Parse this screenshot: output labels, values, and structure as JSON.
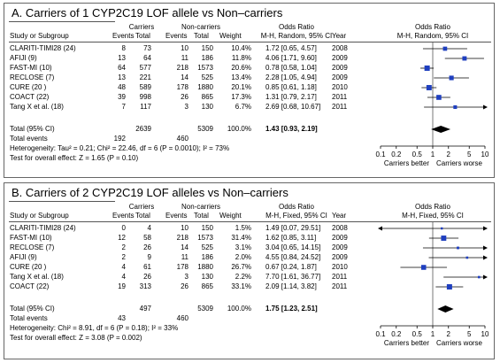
{
  "panels": [
    {
      "title": "A. Carriers of 1 CYP2C19 LOF allele vs Non–carriers",
      "headers": {
        "group1": "Carriers",
        "group2": "Non-carriers",
        "study": "Study or Subgroup",
        "events": "Events",
        "total": "Total",
        "events2": "Events",
        "total2": "Total",
        "weight": "Weight",
        "or_col": "Odds Ratio",
        "or_sub": "M-H, Random, 95% CI",
        "year": "Year",
        "plot_title": "Odds Ratio",
        "plot_sub": "M-H, Random, 95% CI"
      },
      "rows": [
        {
          "study": "CLARITI-TIMI28 (24)",
          "e1": "8",
          "t1": "73",
          "e2": "10",
          "t2": "150",
          "weight": "10.4%",
          "ci": "1.72 [0.65, 4.57]",
          "year": "2008"
        },
        {
          "study": "AFIJI (9)",
          "e1": "13",
          "t1": "64",
          "e2": "11",
          "t2": "186",
          "weight": "11.8%",
          "ci": "4.06 [1.71, 9.60]",
          "year": "2009"
        },
        {
          "study": "FAST-MI (10)",
          "e1": "64",
          "t1": "577",
          "e2": "218",
          "t2": "1573",
          "weight": "20.6%",
          "ci": "0.78 [0.58, 1.04]",
          "year": "2009"
        },
        {
          "study": "RECLOSE (7)",
          "e1": "13",
          "t1": "221",
          "e2": "14",
          "t2": "525",
          "weight": "13.4%",
          "ci": "2.28 [1.05, 4.94]",
          "year": "2009"
        },
        {
          "study": "CURE (20 )",
          "e1": "48",
          "t1": "589",
          "e2": "178",
          "t2": "1880",
          "weight": "20.1%",
          "ci": "0.85 [0.61, 1.18]",
          "year": "2010"
        },
        {
          "study": "COACT (22)",
          "e1": "39",
          "t1": "998",
          "e2": "26",
          "t2": "865",
          "weight": "17.3%",
          "ci": "1.31 [0.79, 2.17]",
          "year": "2011"
        },
        {
          "study": "Tang X et al. (18)",
          "e1": "7",
          "t1": "117",
          "e2": "3",
          "t2": "130",
          "weight": "6.7%",
          "ci": "2.69 [0.68, 10.67]",
          "year": "2011"
        }
      ],
      "total": {
        "label": "Total (95% CI)",
        "t1": "2639",
        "t2": "5309",
        "weight": "100.0%",
        "ci": "1.43 [0.93, 2.19]"
      },
      "total_events": {
        "label": "Total events",
        "e1": "192",
        "e2": "460"
      },
      "heterogeneity": "Heterogeneity: Tau² = 0.21; Chi² = 22.46, df = 6 (P = 0.0010); I² = 73%",
      "overall": "Test for overall effect: Z = 1.65 (P = 0.10)",
      "favours_left": "Carriers better",
      "favours_right": "Carriers worse"
    },
    {
      "title": "B. Carriers of 2 CYP2C19 LOF alleles vs Non–carriers",
      "headers": {
        "group1": "Carriers",
        "group2": "Non-carriers",
        "study": "Study or Subgroup",
        "events": "Events",
        "total": "Total",
        "events2": "Events",
        "total2": "Total",
        "weight": "Weight",
        "or_col": "Odds Ratio",
        "or_sub": "M-H, Fixed, 95% CI",
        "year": "Year",
        "plot_title": "Odds Ratio",
        "plot_sub": "M-H, Fixed, 95% CI"
      },
      "rows": [
        {
          "study": "CLARITI-TIMI28 (24)",
          "e1": "0",
          "t1": "4",
          "e2": "10",
          "t2": "150",
          "weight": "1.5%",
          "ci": "1.49 [0.07, 29.51]",
          "year": "2008"
        },
        {
          "study": "FAST-MI (10)",
          "e1": "12",
          "t1": "58",
          "e2": "218",
          "t2": "1573",
          "weight": "31.4%",
          "ci": "1.62 [0.85, 3.11]",
          "year": "2009"
        },
        {
          "study": "RECLOSE (7)",
          "e1": "2",
          "t1": "26",
          "e2": "14",
          "t2": "525",
          "weight": "3.1%",
          "ci": "3.04 [0.65, 14.15]",
          "year": "2009"
        },
        {
          "study": "AFIJI (9)",
          "e1": "2",
          "t1": "9",
          "e2": "11",
          "t2": "186",
          "weight": "2.0%",
          "ci": "4.55 [0.84, 24.52]",
          "year": "2009"
        },
        {
          "study": "CURE (20 )",
          "e1": "4",
          "t1": "61",
          "e2": "178",
          "t2": "1880",
          "weight": "26.7%",
          "ci": "0.67 [0.24, 1.87]",
          "year": "2010"
        },
        {
          "study": "Tang X et al. (18)",
          "e1": "4",
          "t1": "26",
          "e2": "3",
          "t2": "130",
          "weight": "2.2%",
          "ci": "7.70 [1.61, 36.77]",
          "year": "2011"
        },
        {
          "study": "COACT (22)",
          "e1": "19",
          "t1": "313",
          "e2": "26",
          "t2": "865",
          "weight": "33.1%",
          "ci": "2.09 [1.14, 3.82]",
          "year": "2011"
        }
      ],
      "total": {
        "label": "Total (95% CI)",
        "t1": "497",
        "t2": "5309",
        "weight": "100.0%",
        "ci": "1.75 [1.23, 2.51]"
      },
      "total_events": {
        "label": "Total events",
        "e1": "43",
        "e2": "460"
      },
      "heterogeneity": "Heterogeneity: Chi² = 8.91, df = 6 (P = 0.18); I² = 33%",
      "overall": "Test for overall effect: Z = 3.08 (P = 0.002)",
      "favours_left": "Carriers better",
      "favours_right": "Carriers worse"
    }
  ],
  "chart_data": [
    {
      "type": "scatter",
      "title": "A. Carriers of 1 CYP2C19 LOF allele vs Non–carriers",
      "xlabel": "",
      "ylabel": "",
      "x_scale": "log",
      "xlim": [
        0.1,
        10
      ],
      "xticks": [
        "0.1",
        "0.2",
        "0.5",
        "1",
        "2",
        "5",
        "10"
      ],
      "reference_line": 1,
      "marker_color": "#1f3fbf",
      "studies": [
        {
          "name": "CLARITI-TIMI28 (24)",
          "or": 1.72,
          "lo": 0.65,
          "hi": 4.57,
          "weight": 10.4
        },
        {
          "name": "AFIJI (9)",
          "or": 4.06,
          "lo": 1.71,
          "hi": 9.6,
          "weight": 11.8
        },
        {
          "name": "FAST-MI (10)",
          "or": 0.78,
          "lo": 0.58,
          "hi": 1.04,
          "weight": 20.6
        },
        {
          "name": "RECLOSE (7)",
          "or": 2.28,
          "lo": 1.05,
          "hi": 4.94,
          "weight": 13.4
        },
        {
          "name": "CURE (20 )",
          "or": 0.85,
          "lo": 0.61,
          "hi": 1.18,
          "weight": 20.1
        },
        {
          "name": "COACT (22)",
          "or": 1.31,
          "lo": 0.79,
          "hi": 2.17,
          "weight": 17.3
        },
        {
          "name": "Tang X et al. (18)",
          "or": 2.69,
          "lo": 0.68,
          "hi": 10.67,
          "weight": 6.7
        }
      ],
      "pooled": {
        "or": 1.43,
        "lo": 0.93,
        "hi": 2.19
      }
    },
    {
      "type": "scatter",
      "title": "B. Carriers of 2 CYP2C19 LOF alleles vs Non–carriers",
      "xlabel": "",
      "ylabel": "",
      "x_scale": "log",
      "xlim": [
        0.1,
        10
      ],
      "xticks": [
        "0.1",
        "0.2",
        "0.5",
        "1",
        "2",
        "5",
        "10"
      ],
      "reference_line": 1,
      "marker_color": "#1f3fbf",
      "studies": [
        {
          "name": "CLARITI-TIMI28 (24)",
          "or": 1.49,
          "lo": 0.07,
          "hi": 29.51,
          "weight": 1.5
        },
        {
          "name": "FAST-MI (10)",
          "or": 1.62,
          "lo": 0.85,
          "hi": 3.11,
          "weight": 31.4
        },
        {
          "name": "RECLOSE (7)",
          "or": 3.04,
          "lo": 0.65,
          "hi": 14.15,
          "weight": 3.1
        },
        {
          "name": "AFIJI (9)",
          "or": 4.55,
          "lo": 0.84,
          "hi": 24.52,
          "weight": 2.0
        },
        {
          "name": "CURE (20 )",
          "or": 0.67,
          "lo": 0.24,
          "hi": 1.87,
          "weight": 26.7
        },
        {
          "name": "Tang X et al. (18)",
          "or": 7.7,
          "lo": 1.61,
          "hi": 36.77,
          "weight": 2.2
        },
        {
          "name": "COACT (22)",
          "or": 2.09,
          "lo": 1.14,
          "hi": 3.82,
          "weight": 33.1
        }
      ],
      "pooled": {
        "or": 1.75,
        "lo": 1.23,
        "hi": 2.51
      }
    }
  ]
}
